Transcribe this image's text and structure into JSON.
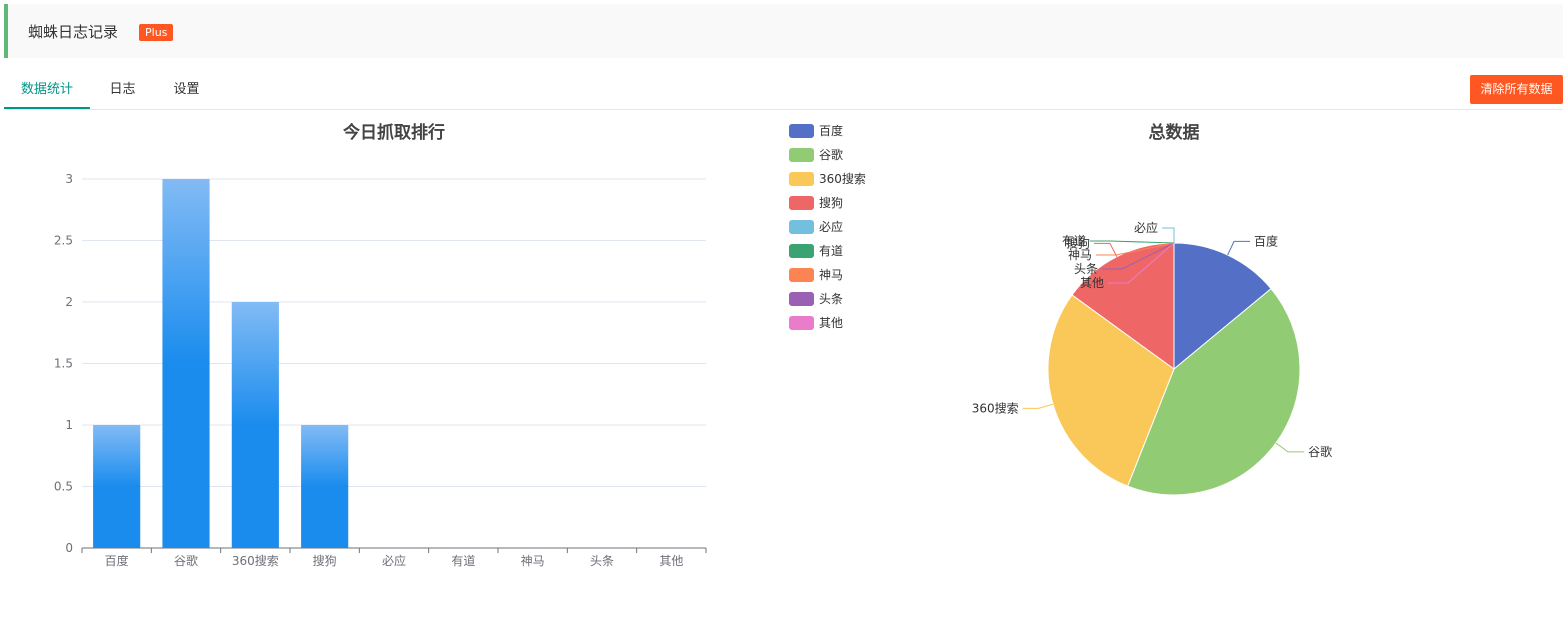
{
  "header": {
    "title": "蜘蛛日志记录",
    "badge": "Plus"
  },
  "tabs": [
    {
      "label": "数据统计",
      "active": true
    },
    {
      "label": "日志",
      "active": false
    },
    {
      "label": "设置",
      "active": false
    }
  ],
  "actions": {
    "clear_label": "清除所有数据"
  },
  "colors": {
    "accent": "#009688",
    "header_border": "#5fb878",
    "danger": "#ff5722",
    "bar": "#1a8cee",
    "bar_light": "#82bbf5"
  },
  "chart_data": [
    {
      "type": "bar",
      "title": "今日抓取排行",
      "categories": [
        "百度",
        "谷歌",
        "360搜索",
        "搜狗",
        "必应",
        "有道",
        "神马",
        "头条",
        "其他"
      ],
      "values": [
        1,
        3,
        2,
        1,
        0,
        0,
        0,
        0,
        0
      ],
      "ylim": [
        0,
        3
      ],
      "yticks": [
        "0",
        "0.5",
        "1",
        "1.5",
        "2",
        "2.5",
        "3"
      ],
      "grid": true
    },
    {
      "type": "pie",
      "title": "总数据",
      "legend_position": "left",
      "slices": [
        {
          "name": "百度",
          "value": 14,
          "color": "#5470c6"
        },
        {
          "name": "谷歌",
          "value": 42,
          "color": "#91cc75"
        },
        {
          "name": "360搜索",
          "value": 29,
          "color": "#fac858"
        },
        {
          "name": "搜狗",
          "value": 15,
          "color": "#ee6666"
        },
        {
          "name": "必应",
          "value": 0,
          "color": "#73c0de"
        },
        {
          "name": "有道",
          "value": 0,
          "color": "#3ba272"
        },
        {
          "name": "神马",
          "value": 0,
          "color": "#fc8452"
        },
        {
          "name": "头条",
          "value": 0,
          "color": "#9a60b4"
        },
        {
          "name": "其他",
          "value": 0,
          "color": "#ea7ccc"
        }
      ]
    }
  ]
}
